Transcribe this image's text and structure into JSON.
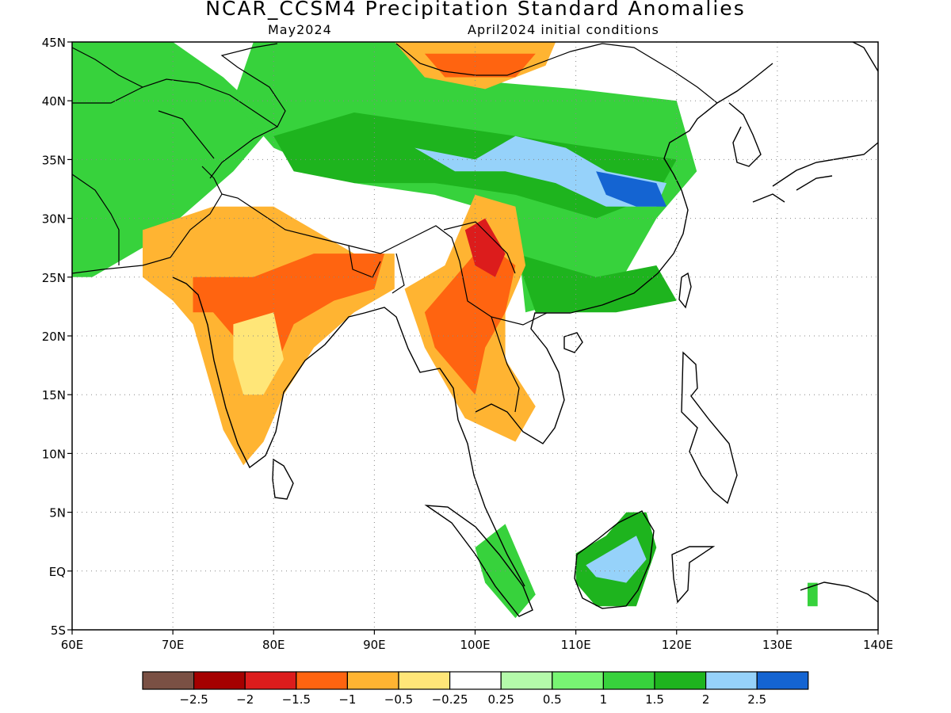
{
  "header": {
    "title": "NCAR_CCSM4 Precipitation Standard Anomalies",
    "target_month": "May2024",
    "init_conditions": "April2024 initial conditions"
  },
  "map": {
    "lon_range": [
      60,
      140
    ],
    "lat_range": [
      -5,
      45
    ],
    "lat_ticks": [
      {
        "value": 45,
        "label": "45N"
      },
      {
        "value": 40,
        "label": "40N"
      },
      {
        "value": 35,
        "label": "35N"
      },
      {
        "value": 30,
        "label": "30N"
      },
      {
        "value": 25,
        "label": "25N"
      },
      {
        "value": 20,
        "label": "20N"
      },
      {
        "value": 15,
        "label": "15N"
      },
      {
        "value": 10,
        "label": "10N"
      },
      {
        "value": 5,
        "label": "5N"
      },
      {
        "value": 0,
        "label": "EQ"
      },
      {
        "value": -5,
        "label": "5S"
      }
    ],
    "lon_ticks": [
      {
        "value": 60,
        "label": "60E"
      },
      {
        "value": 70,
        "label": "70E"
      },
      {
        "value": 80,
        "label": "80E"
      },
      {
        "value": 90,
        "label": "90E"
      },
      {
        "value": 100,
        "label": "100E"
      },
      {
        "value": 110,
        "label": "110E"
      },
      {
        "value": 120,
        "label": "120E"
      },
      {
        "value": 130,
        "label": "130E"
      },
      {
        "value": 140,
        "label": "140E"
      }
    ],
    "regions": [
      {
        "id": "west-asia-wet",
        "anomaly": 1.0,
        "points": [
          [
            60,
            45
          ],
          [
            70,
            45
          ],
          [
            75,
            42
          ],
          [
            80,
            38
          ],
          [
            76,
            34
          ],
          [
            72,
            31
          ],
          [
            68,
            28
          ],
          [
            62,
            25
          ],
          [
            60,
            25
          ]
        ]
      },
      {
        "id": "central-asia-wet",
        "anomaly": 1.0,
        "points": [
          [
            78,
            45
          ],
          [
            92,
            45
          ],
          [
            96,
            42
          ],
          [
            110,
            41
          ],
          [
            120,
            40
          ],
          [
            122,
            34
          ],
          [
            118,
            30
          ],
          [
            114,
            24
          ],
          [
            105,
            22
          ],
          [
            104,
            30
          ],
          [
            96,
            32
          ],
          [
            88,
            33
          ],
          [
            80,
            36
          ],
          [
            76,
            40
          ]
        ]
      },
      {
        "id": "tibet-core-wet",
        "anomaly": 1.5,
        "points": [
          [
            80,
            37
          ],
          [
            88,
            39
          ],
          [
            96,
            38
          ],
          [
            104,
            37
          ],
          [
            112,
            36
          ],
          [
            120,
            35
          ],
          [
            118,
            32
          ],
          [
            112,
            30
          ],
          [
            104,
            32
          ],
          [
            96,
            33
          ],
          [
            88,
            33
          ],
          [
            82,
            34
          ]
        ]
      },
      {
        "id": "qinghai-very-wet",
        "anomaly": 2.0,
        "points": [
          [
            94,
            36
          ],
          [
            100,
            35
          ],
          [
            104,
            37
          ],
          [
            109,
            36
          ],
          [
            113,
            34
          ],
          [
            119,
            33
          ],
          [
            118,
            31
          ],
          [
            113,
            31
          ],
          [
            108,
            33
          ],
          [
            103,
            34
          ],
          [
            98,
            34
          ]
        ]
      },
      {
        "id": "east-china-strong-wet",
        "anomaly": 2.5,
        "points": [
          [
            112,
            34
          ],
          [
            118,
            33
          ],
          [
            119,
            31
          ],
          [
            116,
            31
          ],
          [
            113,
            32
          ]
        ]
      },
      {
        "id": "mongolia-dry",
        "anomaly": -1.0,
        "points": [
          [
            92,
            45
          ],
          [
            108,
            45
          ],
          [
            107,
            43
          ],
          [
            101,
            41
          ],
          [
            95,
            42
          ]
        ]
      },
      {
        "id": "mongolia-core-dry",
        "anomaly": -1.5,
        "points": [
          [
            95,
            44
          ],
          [
            106,
            44
          ],
          [
            104,
            42
          ],
          [
            97,
            42
          ]
        ]
      },
      {
        "id": "south-china-wet",
        "anomaly": 1.5,
        "points": [
          [
            104,
            27
          ],
          [
            112,
            25
          ],
          [
            118,
            26
          ],
          [
            120,
            23
          ],
          [
            114,
            22
          ],
          [
            106,
            22
          ]
        ]
      },
      {
        "id": "india-dry",
        "anomaly": -1.0,
        "points": [
          [
            67,
            29
          ],
          [
            74,
            31
          ],
          [
            80,
            31
          ],
          [
            88,
            27
          ],
          [
            92,
            27
          ],
          [
            92,
            24
          ],
          [
            88,
            22
          ],
          [
            84,
            19
          ],
          [
            81,
            15
          ],
          [
            79,
            11
          ],
          [
            77,
            9
          ],
          [
            75,
            12
          ],
          [
            73,
            18
          ],
          [
            72,
            21
          ],
          [
            70,
            23
          ],
          [
            67,
            25
          ]
        ]
      },
      {
        "id": "india-moderate-dry",
        "anomaly": -1.5,
        "points": [
          [
            72,
            25
          ],
          [
            78,
            25
          ],
          [
            84,
            27
          ],
          [
            91,
            27
          ],
          [
            90,
            24
          ],
          [
            86,
            23
          ],
          [
            82,
            21
          ],
          [
            80,
            17
          ],
          [
            77,
            19
          ],
          [
            74,
            22
          ],
          [
            72,
            22
          ]
        ]
      },
      {
        "id": "deccan-mild-dry",
        "anomaly": -0.5,
        "points": [
          [
            76,
            21
          ],
          [
            80,
            22
          ],
          [
            81,
            18
          ],
          [
            79,
            15
          ],
          [
            77,
            15
          ],
          [
            76,
            18
          ]
        ]
      },
      {
        "id": "indochina-dry",
        "anomaly": -1.0,
        "points": [
          [
            93,
            24
          ],
          [
            97,
            26
          ],
          [
            100,
            32
          ],
          [
            104,
            31
          ],
          [
            105,
            26
          ],
          [
            103,
            22
          ],
          [
            103,
            18
          ],
          [
            106,
            14
          ],
          [
            104,
            11
          ],
          [
            99,
            13
          ],
          [
            97,
            16
          ],
          [
            95,
            19
          ]
        ]
      },
      {
        "id": "myanmar-dry",
        "anomaly": -1.5,
        "points": [
          [
            95,
            22
          ],
          [
            98,
            25
          ],
          [
            101,
            28
          ],
          [
            104,
            26
          ],
          [
            103,
            22
          ],
          [
            101,
            19
          ],
          [
            100,
            15
          ],
          [
            98,
            17
          ],
          [
            96,
            19
          ]
        ]
      },
      {
        "id": "yunnan-very-dry",
        "anomaly": -2.0,
        "points": [
          [
            99,
            29
          ],
          [
            101,
            30
          ],
          [
            103,
            27
          ],
          [
            102,
            25
          ],
          [
            100,
            26
          ]
        ]
      },
      {
        "id": "borneo-wet",
        "anomaly": 1.5,
        "points": [
          [
            110,
            1.5
          ],
          [
            113,
            3
          ],
          [
            115,
            5
          ],
          [
            117,
            5
          ],
          [
            118,
            2
          ],
          [
            116,
            -3
          ],
          [
            112,
            -3
          ],
          [
            110,
            -1
          ]
        ]
      },
      {
        "id": "borneo-very-wet",
        "anomaly": 2.0,
        "points": [
          [
            111,
            0.5
          ],
          [
            114,
            2
          ],
          [
            116,
            3
          ],
          [
            117,
            1
          ],
          [
            115,
            -1
          ],
          [
            112,
            -0.5
          ]
        ]
      },
      {
        "id": "sumatra-wet",
        "anomaly": 1.0,
        "points": [
          [
            100,
            2
          ],
          [
            103,
            4
          ],
          [
            106,
            -2
          ],
          [
            104,
            -4
          ],
          [
            101,
            -1
          ]
        ]
      },
      {
        "id": "guinea-wet",
        "anomaly": 1.0,
        "points": [
          [
            133,
            -1
          ],
          [
            134,
            -1
          ],
          [
            134,
            -3
          ],
          [
            133,
            -3
          ]
        ]
      }
    ]
  },
  "colorbar": {
    "colors": [
      "#7a5044",
      "#a50000",
      "#dc1c1c",
      "#ff6410",
      "#ffb432",
      "#ffe678",
      "#ffffff",
      "#b4faaa",
      "#78f573",
      "#37d23c",
      "#1eb41e",
      "#96d2fa",
      "#1464d2"
    ],
    "labels": [
      "−2.5",
      "−2",
      "−1.5",
      "−1",
      "−0.5",
      "−0.25",
      "0.25",
      "0.5",
      "1",
      "1.5",
      "2",
      "2.5"
    ],
    "thresholds": [
      -2.5,
      -2,
      -1.5,
      -1,
      -0.5,
      -0.25,
      0.25,
      0.5,
      1,
      1.5,
      2,
      2.5
    ]
  }
}
